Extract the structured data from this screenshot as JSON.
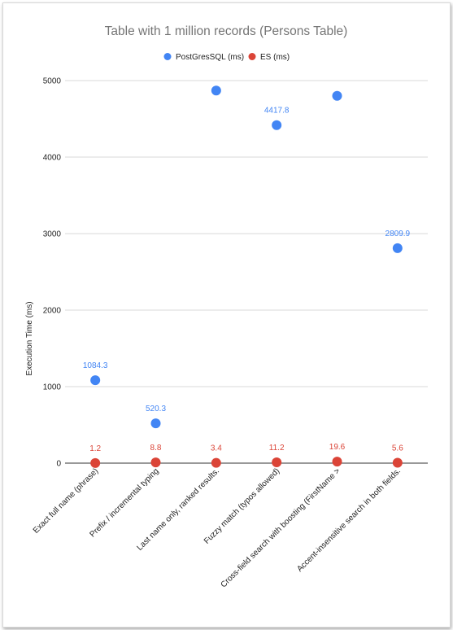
{
  "chart_data": {
    "type": "scatter",
    "title": "Table with 1 million records (Persons Table)",
    "ylabel": "Execution Time (ms)",
    "xlabel": "",
    "ylim": [
      0,
      5000
    ],
    "yticks": [
      0,
      1000,
      2000,
      3000,
      4000,
      5000
    ],
    "grid": true,
    "legend_position": "top",
    "categories": [
      "Exact full name (phrase)",
      "Prefix / incremental typing",
      "Last name only, ranked results.",
      "Fuzzy match (typos allowed)",
      "Cross-field search with boosting (FirstName >",
      "Accent-insensitive search in both fields."
    ],
    "series": [
      {
        "name": "PostGresSQL (ms)",
        "color": "#4285f4",
        "values": [
          1084.3,
          520.3,
          4870,
          4417.8,
          4800,
          2809.9
        ],
        "labels": [
          "1084.3",
          "520.3",
          "",
          "4417.8",
          "",
          "2809.9"
        ]
      },
      {
        "name": "ES (ms)",
        "color": "#db4437",
        "values": [
          1.2,
          8.8,
          3.4,
          11.2,
          19.6,
          5.6
        ],
        "labels": [
          "1.2",
          "8.8",
          "3.4",
          "11.2",
          "19.6",
          "5.6"
        ]
      }
    ]
  }
}
